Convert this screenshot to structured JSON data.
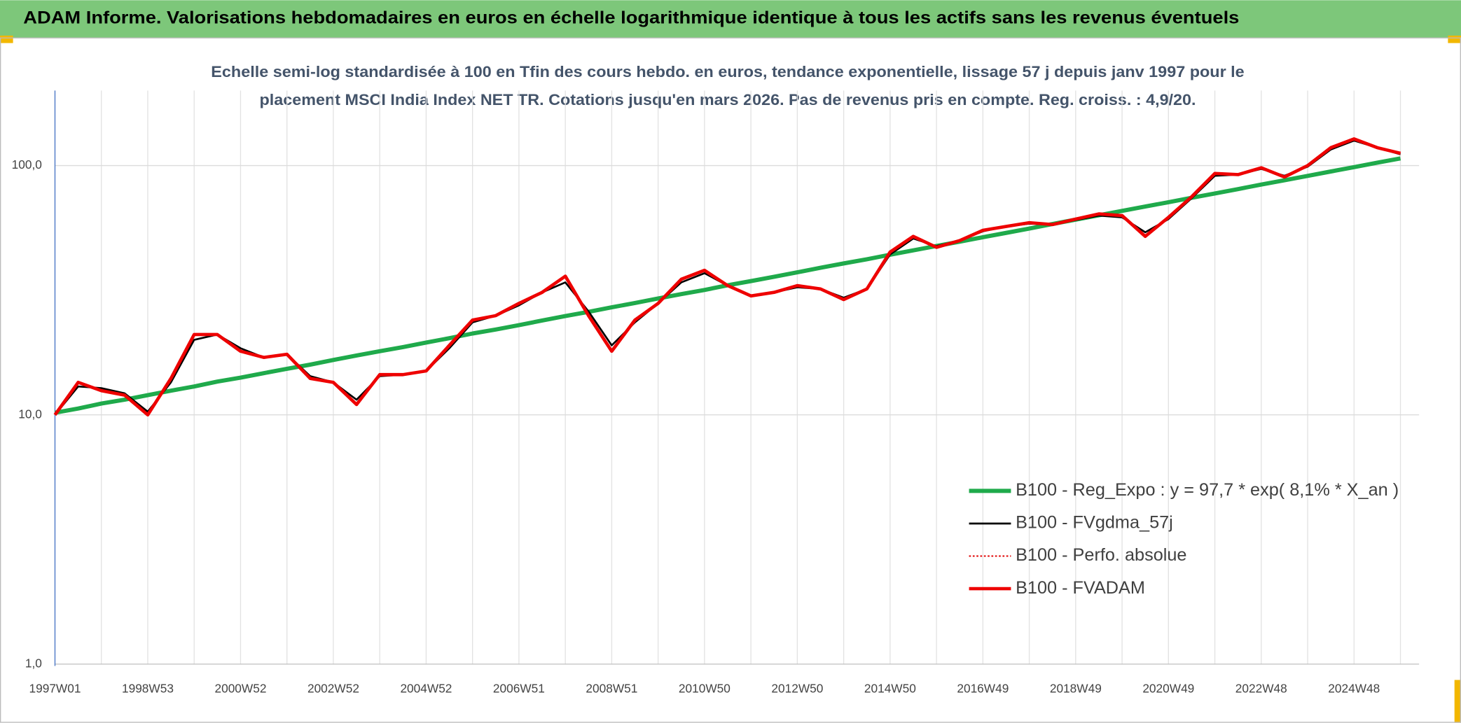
{
  "chart_data": {
    "type": "line",
    "title": "ADAM Informe. Valorisations hebdomadaires en euros en échelle logarithmique identique à tous les actifs sans les revenus éventuels",
    "subtitle": [
      "Echelle semi-log standardisée à 100 en Tfin des cours hebdo. en euros, tendance exponentielle, lissage 57 j depuis janv 1997 pour le",
      "placement MSCI India Index NET TR. Cotations jusqu'en mars 2026. Pas de revenus pris en compte. Reg. croiss. : 4,9/20."
    ],
    "categories": [
      "1997W01",
      null,
      null,
      null,
      "1998W53",
      null,
      null,
      null,
      "2000W52",
      null,
      null,
      null,
      "2002W52",
      null,
      null,
      null,
      "2004W52",
      null,
      null,
      null,
      "2006W51",
      null,
      null,
      null,
      "2008W51",
      null,
      null,
      null,
      "2010W50",
      null,
      null,
      null,
      "2012W50",
      null,
      null,
      null,
      "2014W50",
      null,
      null,
      null,
      "2016W49",
      null,
      null,
      null,
      "2018W49",
      null,
      null,
      null,
      "2020W49",
      null,
      null,
      null,
      "2022W48",
      null,
      null,
      null,
      "2024W48",
      null,
      null
    ],
    "log_scale": true,
    "ylim": [
      1,
      200
    ],
    "yticks": [
      {
        "value": 1,
        "label": "1,0"
      },
      {
        "value": 10,
        "label": "10,0"
      },
      {
        "value": 100,
        "label": "100,0"
      }
    ],
    "grid": true,
    "legend": "lower right",
    "series": [
      {
        "name": "B100 - Reg_Expo : y = 97,7 * exp( 8,1% *  X_an )",
        "color": "#1faa4b",
        "values": [
          10.2,
          10.6,
          11.1,
          11.5,
          12.0,
          12.5,
          13.0,
          13.6,
          14.1,
          14.7,
          15.3,
          15.9,
          16.6,
          17.3,
          18.0,
          18.7,
          19.5,
          20.3,
          21.2,
          22.0,
          22.9,
          23.9,
          24.9,
          25.9,
          27.0,
          28.1,
          29.3,
          30.5,
          31.7,
          33.1,
          34.4,
          35.8,
          37.3,
          38.9,
          40.5,
          42.1,
          43.9,
          45.7,
          47.6,
          49.5,
          51.6,
          53.7,
          55.9,
          58.3,
          60.7,
          63.2,
          65.8,
          68.5,
          71.3,
          74.3,
          77.3,
          80.5,
          83.9,
          87.3,
          90.9,
          94.7,
          98.6,
          102.7,
          106.9
        ]
      },
      {
        "name": "B100 - FVgdma_57j",
        "color": "#000000",
        "values": [
          10,
          13,
          12.8,
          12.2,
          10.3,
          13.5,
          20,
          21,
          18.5,
          17,
          17.5,
          14.3,
          13.5,
          11.5,
          14.3,
          14.5,
          15,
          18.5,
          23.5,
          25,
          27.5,
          31,
          34,
          26,
          19,
          23.5,
          28,
          34,
          37,
          33,
          30,
          31,
          32.5,
          32,
          29.5,
          32,
          44,
          51,
          47.5,
          50,
          54.5,
          57,
          58.5,
          58,
          60.5,
          63,
          62,
          54,
          61,
          74,
          91,
          92,
          97,
          91,
          99,
          116,
          126,
          118,
          111
        ]
      },
      {
        "name": "B100 - Perfo. absolue",
        "color": "#e00000",
        "style": "dotted",
        "values": [
          10,
          13.5,
          12.5,
          12,
          10,
          14,
          21,
          21,
          18,
          17,
          17.5,
          14,
          13.5,
          11,
          14.5,
          14.5,
          15,
          19,
          24,
          25,
          28,
          31,
          36,
          25,
          18,
          24,
          28,
          35,
          38,
          33,
          30,
          31,
          33,
          32,
          29,
          32,
          45,
          52,
          47,
          50,
          55,
          57,
          59,
          58,
          61,
          64,
          63,
          52,
          62,
          75,
          93,
          92,
          98,
          90,
          100,
          118,
          128,
          118,
          112
        ]
      },
      {
        "name": "B100 - FVADAM",
        "color": "#ee0000",
        "values": [
          10,
          13.5,
          12.5,
          12,
          10,
          14,
          21,
          21,
          18,
          17,
          17.5,
          14,
          13.5,
          11,
          14.5,
          14.5,
          15,
          19,
          24,
          25,
          28,
          31,
          36,
          25,
          18,
          24,
          28,
          35,
          38,
          33,
          30,
          31,
          33,
          32,
          29,
          32,
          45,
          52,
          47,
          50,
          55,
          57,
          59,
          58,
          61,
          64,
          63,
          52,
          62,
          75,
          93,
          92,
          98,
          90,
          100,
          118,
          128,
          118,
          112
        ]
      }
    ]
  }
}
